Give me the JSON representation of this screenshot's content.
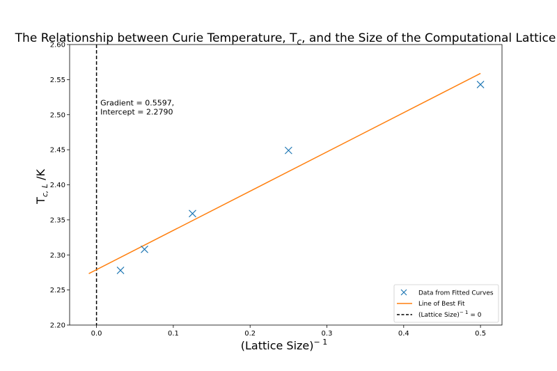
{
  "chart_data": {
    "type": "scatter",
    "title_main": "The Relationship between Curie Temperature, T",
    "title_sub": "c",
    "title_tail": ", and the Size of the Computational Lattice",
    "ylabel_main": "T",
    "ylabel_sub": "c, L",
    "ylabel_tail": " /K",
    "xlabel_main": "(Lattice Size)",
    "xlabel_sup": "− 1",
    "xlim": [
      -0.035,
      0.528
    ],
    "ylim": [
      2.2,
      2.6
    ],
    "xticks": [
      0.0,
      0.1,
      0.2,
      0.3,
      0.4,
      0.5
    ],
    "xtick_labels": [
      "0.0",
      "0.1",
      "0.2",
      "0.3",
      "0.4",
      "0.5"
    ],
    "yticks": [
      2.2,
      2.25,
      2.3,
      2.35,
      2.4,
      2.45,
      2.5,
      2.55,
      2.6
    ],
    "ytick_labels": [
      "2.20",
      "2.25",
      "2.30",
      "2.35",
      "2.40",
      "2.45",
      "2.50",
      "2.55",
      "2.60"
    ],
    "series": [
      {
        "name": "Data from Fitted Curves",
        "kind": "scatter",
        "marker": "x",
        "color": "#1f77b4",
        "x": [
          0.03125,
          0.0625,
          0.125,
          0.25,
          0.5
        ],
        "y": [
          2.278,
          2.308,
          2.359,
          2.449,
          2.543
        ]
      },
      {
        "name": "Line of Best Fit",
        "kind": "line",
        "color": "#ff7f0e",
        "gradient": 0.5597,
        "intercept": 2.279,
        "x_range": [
          -0.01,
          0.5
        ]
      },
      {
        "name_main": "(Lattice Size)",
        "name_sup": "− 1",
        "name_tail": " = 0",
        "kind": "vline",
        "color": "#000000",
        "x": 0.0
      }
    ],
    "annotation": {
      "line1": "Gradient = 0.5597,",
      "line2": "Intercept = 2.2790",
      "x": 0.005,
      "y": 2.513
    },
    "legend_position": "lower-right"
  }
}
